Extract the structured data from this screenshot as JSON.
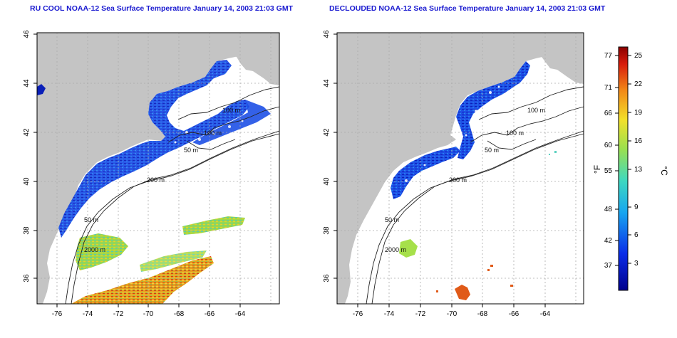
{
  "left_map": {
    "title": "RU COOL NOAA-12 Sea Surface Temperature January 14, 2003 21:03 GMT",
    "x_ticks": [
      "-76",
      "-74",
      "-72",
      "-70",
      "-68",
      "-66",
      "-64"
    ],
    "y_ticks": [
      "36",
      "38",
      "40",
      "42",
      "44",
      "46"
    ],
    "contour_labels": [
      "100 m",
      "100 m",
      "50 m",
      "200 m",
      "50 m",
      "2000 m"
    ]
  },
  "right_map": {
    "title": "DECLOUDED NOAA-12 Sea Surface Temperature January 14, 2003 21:03 GMT",
    "x_ticks": [
      "-76",
      "-74",
      "-72",
      "-70",
      "-68",
      "-66",
      "-64"
    ],
    "y_ticks": [
      "36",
      "38",
      "40",
      "42",
      "44",
      "46"
    ],
    "contour_labels": [
      "100 m",
      "100 m",
      "50 m",
      "200 m",
      "50 m",
      "2000 m"
    ]
  },
  "colorbar": {
    "unit_f": "°F",
    "unit_c": "°C",
    "f_ticks": [
      "77",
      "71",
      "66",
      "60",
      "55",
      "48",
      "42",
      "37"
    ],
    "c_ticks": [
      "25",
      "22",
      "19",
      "16",
      "13",
      "9",
      "6",
      "3"
    ]
  },
  "colors": {
    "land": "#c4c4c4",
    "title": "#1a1ad0",
    "cold": "#1f3fe0",
    "warm": "#e03a10"
  }
}
